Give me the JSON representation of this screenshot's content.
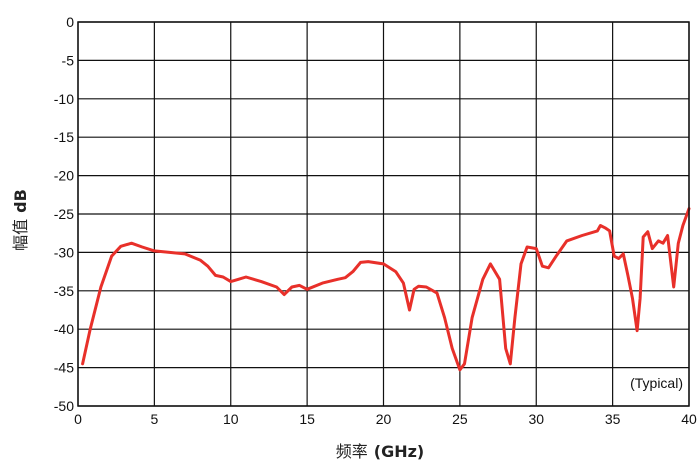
{
  "chart_data": {
    "type": "line",
    "title": "",
    "xlabel": "频率 (GHz)",
    "xlabel_parts": [
      "频率",
      "(GHz)"
    ],
    "ylabel": "幅值 dB",
    "ylabel_parts": [
      "幅值",
      "dB"
    ],
    "xlim": [
      0,
      40
    ],
    "ylim": [
      -50,
      0
    ],
    "xticks": [
      0,
      5,
      10,
      15,
      20,
      25,
      30,
      35,
      40
    ],
    "yticks": [
      0,
      -5,
      -10,
      -15,
      -20,
      -25,
      -30,
      -35,
      -40,
      -45,
      -50
    ],
    "grid": true,
    "annotation": "(Typical)",
    "series": [
      {
        "color": "#e8302a",
        "x": [
          0.3,
          0.8,
          1.5,
          2.2,
          2.8,
          3.5,
          4.2,
          5,
          6,
          7,
          8,
          8.5,
          9,
          9.5,
          10,
          10.5,
          11,
          12,
          13,
          13.5,
          14,
          14.5,
          15,
          16,
          17,
          17.5,
          18,
          18.5,
          19,
          20,
          20.8,
          21.3,
          21.7,
          22,
          22.3,
          22.8,
          23.5,
          24,
          24.5,
          25,
          25.3,
          25.8,
          26.5,
          27,
          27.6,
          28,
          28.3,
          28.6,
          29,
          29.4,
          30,
          30.4,
          30.8,
          31.3,
          32,
          33,
          34,
          34.2,
          34.5,
          34.8,
          35.1,
          35.4,
          35.7,
          36,
          36.3,
          36.6,
          36.8,
          37,
          37.3,
          37.6,
          38,
          38.3,
          38.6,
          39,
          39.3,
          39.6,
          40
        ],
        "y": [
          -44.5,
          -40,
          -34.5,
          -30.5,
          -29.2,
          -28.8,
          -29.3,
          -29.8,
          -30,
          -30.2,
          -31,
          -31.8,
          -33,
          -33.2,
          -33.8,
          -33.5,
          -33.2,
          -33.8,
          -34.5,
          -35.5,
          -34.5,
          -34.3,
          -34.8,
          -34,
          -33.5,
          -33.3,
          -32.5,
          -31.3,
          -31.2,
          -31.5,
          -32.5,
          -34,
          -37.5,
          -34.8,
          -34.4,
          -34.5,
          -35.3,
          -38.5,
          -42.5,
          -45.3,
          -44.5,
          -38.5,
          -33.5,
          -31.5,
          -33.5,
          -42.5,
          -44.5,
          -38.5,
          -31.5,
          -29.3,
          -29.5,
          -31.8,
          -32,
          -30.5,
          -28.5,
          -27.8,
          -27.2,
          -26.5,
          -26.8,
          -27.2,
          -30.5,
          -30.8,
          -30.2,
          -33,
          -36,
          -40.2,
          -36,
          -28,
          -27.3,
          -29.5,
          -28.5,
          -28.8,
          -27.8,
          -34.5,
          -28.8,
          -26.5,
          -24.3
        ]
      }
    ]
  }
}
